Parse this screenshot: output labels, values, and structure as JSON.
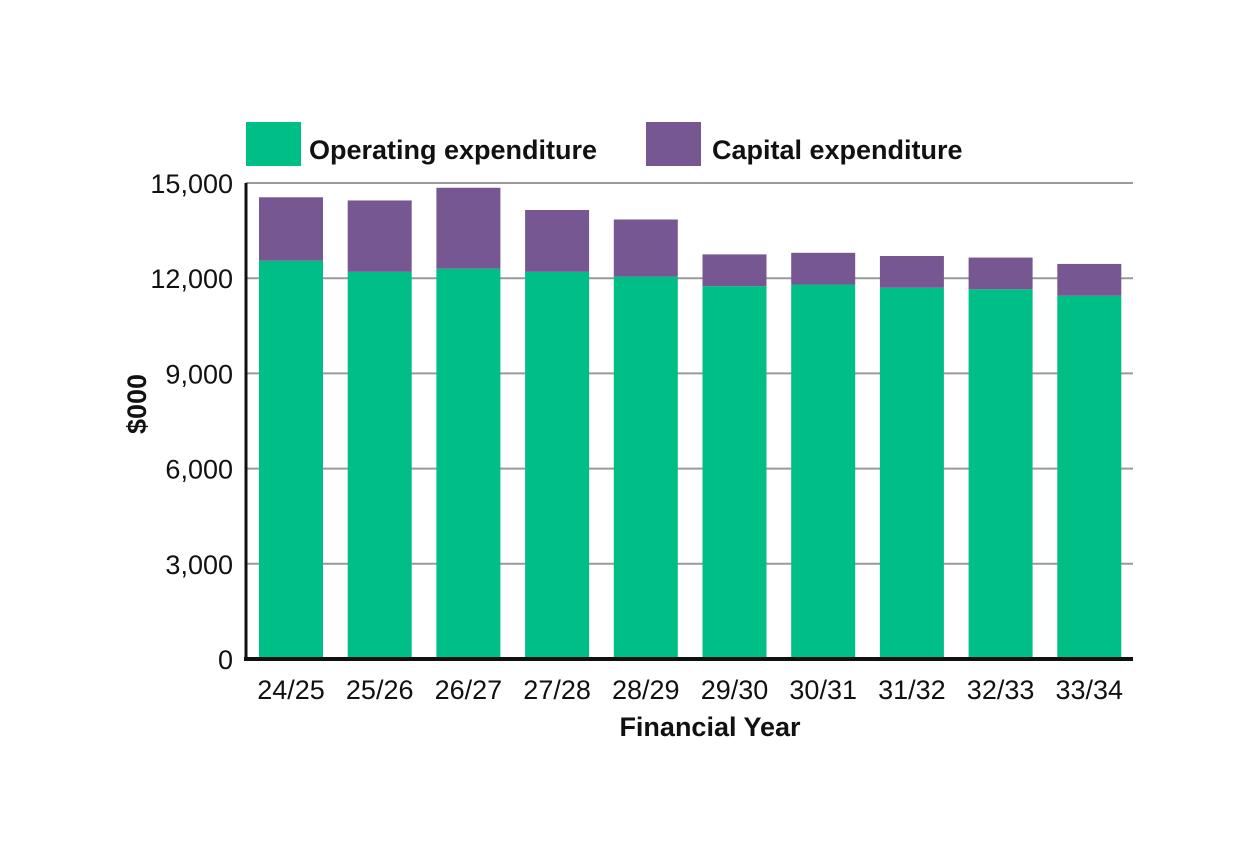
{
  "chart_data": {
    "type": "bar",
    "stacked": true,
    "title": "",
    "xlabel": "Financial Year",
    "ylabel": "$000",
    "categories": [
      "24/25",
      "25/26",
      "26/27",
      "27/28",
      "28/29",
      "29/30",
      "30/31",
      "31/32",
      "32/33",
      "33/34"
    ],
    "series": [
      {
        "name": "Operating expenditure",
        "color": "#00BF86",
        "values": [
          12550,
          12200,
          12300,
          12200,
          12050,
          11750,
          11800,
          11700,
          11650,
          11450
        ]
      },
      {
        "name": "Capital expenditure",
        "color": "#765792",
        "values": [
          2000,
          2250,
          2550,
          1950,
          1800,
          1000,
          1000,
          1000,
          1000,
          1000
        ]
      }
    ],
    "ylim": [
      0,
      15000
    ],
    "yticks": [
      0,
      3000,
      6000,
      9000,
      12000,
      15000
    ],
    "ytick_labels": [
      "0",
      "3,000",
      "6,000",
      "9,000",
      "12,000",
      "15,000"
    ],
    "grid": true,
    "legend_position": "top"
  }
}
